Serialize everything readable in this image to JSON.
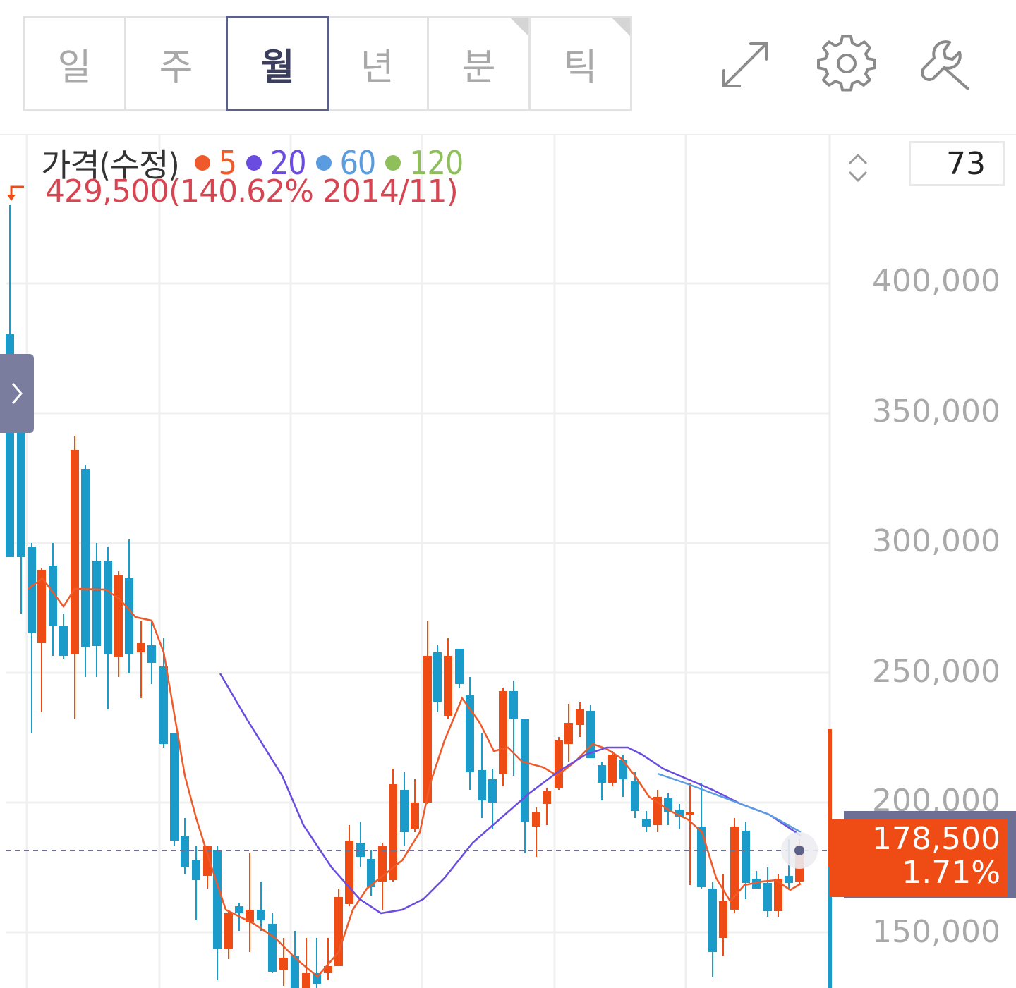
{
  "period_tabs": [
    {
      "label": "일",
      "active": false,
      "has_menu": false
    },
    {
      "label": "주",
      "active": false,
      "has_menu": false
    },
    {
      "label": "월",
      "active": true,
      "has_menu": false
    },
    {
      "label": "년",
      "active": false,
      "has_menu": false
    },
    {
      "label": "분",
      "active": false,
      "has_menu": true
    },
    {
      "label": "틱",
      "active": false,
      "has_menu": true
    }
  ],
  "toolbar": {
    "icons": [
      "expand-icon",
      "gear-icon",
      "wrench-icon"
    ]
  },
  "legend": {
    "price_label": "가격(수정)",
    "moving_averages": [
      {
        "period": "5",
        "color": "#ee5a2a"
      },
      {
        "period": "20",
        "color": "#6a4de0"
      },
      {
        "period": "60",
        "color": "#5b9be0"
      },
      {
        "period": "120",
        "color": "#8fbf5a"
      }
    ]
  },
  "max_marker": {
    "text": "429,500(140.62% 2014/11)"
  },
  "bar_count": "73",
  "y_axis": {
    "ticks": [
      "400,000",
      "350,000",
      "300,000",
      "250,000",
      "200,000",
      "150,000"
    ]
  },
  "current_price": {
    "value": "178,500",
    "change": "1.71%",
    "color": "#ee4c14"
  },
  "colors": {
    "up": "#ee4c14",
    "down": "#1a9bc9",
    "accent": "#5c5f86"
  }
}
